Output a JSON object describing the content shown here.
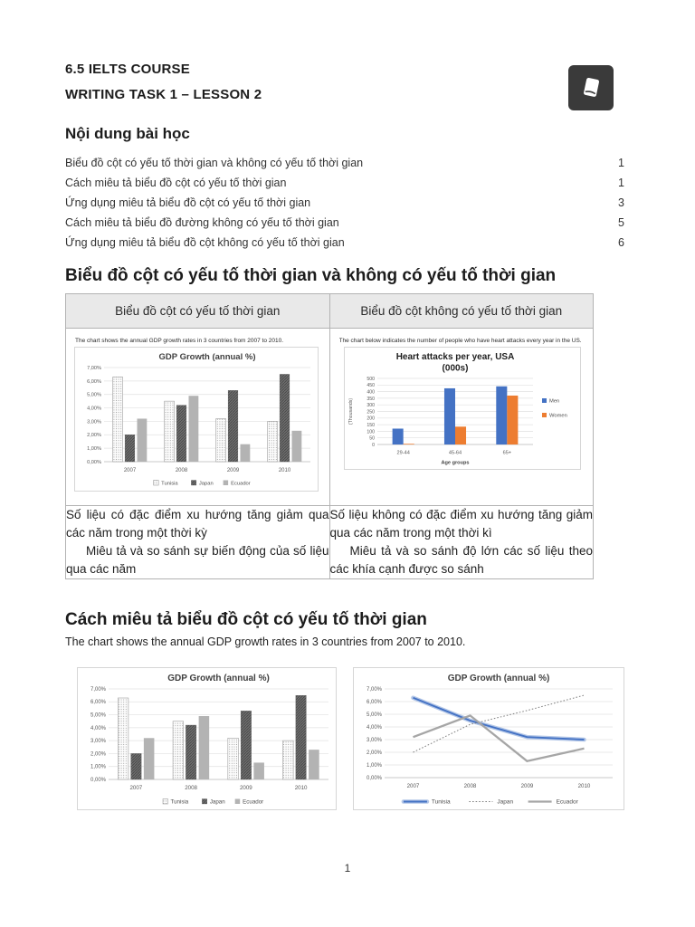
{
  "header": {
    "line1": "6.5 IELTS COURSE",
    "line2": "WRITING TASK 1 – LESSON 2",
    "icon": "book-icon"
  },
  "toc": {
    "title": "Nội dung bài học",
    "items": [
      {
        "label": "Biểu đồ cột có yếu tố thời gian và không có yếu tố thời gian",
        "page": "1"
      },
      {
        "label": "Cách miêu tả biểu đồ cột có yếu tố thời gian",
        "page": "1"
      },
      {
        "label": "Ứng dụng miêu tả biểu đồ cột có yếu tố thời gian",
        "page": "3"
      },
      {
        "label": "Cách miêu tả biểu đồ đường không có yếu tố thời gian",
        "page": "5"
      },
      {
        "label": "Ứng dụng miêu tả biểu đồ cột không có yếu tố thời gian",
        "page": "6"
      }
    ]
  },
  "section1": {
    "heading": "Biểu đồ cột có yếu tố thời gian và không có yếu tố thời gian",
    "table": {
      "headers": [
        "Biểu đồ cột có yếu tố thời gian",
        "Biểu đồ cột không có yếu tố thời gian"
      ],
      "left_caption": "The chart shows the annual GDP growth rates in 3 countries from 2007 to 2010.",
      "right_caption": "The chart  below indicates the number of people who have heart attacks every year in the US.",
      "left_text_p1": "Số liệu có đặc điểm xu hướng tăng giảm qua các năm trong một thời kỳ",
      "left_text_p2": "Miêu tả và so sánh sự biến động của số liệu qua các năm",
      "right_text_p1": "Số liệu không có đặc điểm xu hướng tăng giảm qua các năm trong một thời kì",
      "right_text_p2": "Miêu tả và so sánh độ lớn các số liệu theo các khía cạnh được so sánh"
    }
  },
  "section2": {
    "heading": "Cách miêu tả biểu đồ cột có yếu tố thời gian",
    "paragraph": "The chart shows the annual GDP growth rates in 3 countries from 2007 to 2010."
  },
  "page": {
    "number": "1"
  },
  "colors": {
    "men_blue": "#4472C4",
    "women_orange": "#ED7D31",
    "tunisia_line_blue": "#4472C4",
    "gray_line": "#A6A6A6"
  },
  "chart_data": [
    {
      "id": "gdp-bar-table",
      "type": "bar",
      "title": "GDP Growth (annual %)",
      "categories": [
        "2007",
        "2008",
        "2009",
        "2010"
      ],
      "series": [
        {
          "name": "Tunisia",
          "values": [
            6.3,
            4.5,
            3.2,
            3.0
          ],
          "style": "dotted-light"
        },
        {
          "name": "Japan",
          "values": [
            2.0,
            4.2,
            5.3,
            6.5
          ],
          "style": "dark-weave"
        },
        {
          "name": "Ecuador",
          "values": [
            3.2,
            4.9,
            1.3,
            2.3
          ],
          "style": "solid-gray"
        }
      ],
      "ylim": [
        0,
        7
      ],
      "ystep": 1,
      "yformat": "percent-comma",
      "xlabel": "",
      "ylabel": "",
      "legend": "bottom",
      "grid": true
    },
    {
      "id": "heart-bar",
      "type": "bar",
      "title": [
        "Heart attacks per year, USA",
        "(000s)"
      ],
      "categories": [
        "29-44",
        "45-64",
        "65+"
      ],
      "series": [
        {
          "name": "Men",
          "values": [
            120,
            425,
            440
          ],
          "color": "#4472C4"
        },
        {
          "name": "Women",
          "values": [
            5,
            135,
            370
          ],
          "color": "#ED7D31"
        }
      ],
      "ylim": [
        0,
        500
      ],
      "ystep": 50,
      "yformat": "integer",
      "xlabel": "Age groups",
      "ylabel": "(Thousands)",
      "legend": "right",
      "grid": true
    },
    {
      "id": "gdp-bar-large",
      "type": "bar",
      "title": "GDP Growth (annual %)",
      "categories": [
        "2007",
        "2008",
        "2009",
        "2010"
      ],
      "series": [
        {
          "name": "Tunisia",
          "values": [
            6.3,
            4.5,
            3.2,
            3.0
          ],
          "style": "dotted-light"
        },
        {
          "name": "Japan",
          "values": [
            2.0,
            4.2,
            5.3,
            6.5
          ],
          "style": "dark-weave"
        },
        {
          "name": "Ecuador",
          "values": [
            3.2,
            4.9,
            1.3,
            2.3
          ],
          "style": "solid-gray"
        }
      ],
      "ylim": [
        0,
        7
      ],
      "ystep": 1,
      "yformat": "percent-comma",
      "xlabel": "",
      "ylabel": "",
      "legend": "bottom",
      "grid": true
    },
    {
      "id": "gdp-line",
      "type": "line",
      "title": "GDP Growth (annual %)",
      "categories": [
        "2007",
        "2008",
        "2009",
        "2010"
      ],
      "series": [
        {
          "name": "Tunisia",
          "values": [
            6.3,
            4.5,
            3.2,
            3.0
          ],
          "color": "#4472C4",
          "line": "solid-cased"
        },
        {
          "name": "Japan",
          "values": [
            2.0,
            4.2,
            5.3,
            6.5
          ],
          "color": "#7F7F7F",
          "line": "dotted"
        },
        {
          "name": "Ecuador",
          "values": [
            3.2,
            4.9,
            1.3,
            2.3
          ],
          "color": "#A6A6A6",
          "line": "solid"
        }
      ],
      "ylim": [
        0,
        7
      ],
      "ystep": 1,
      "yformat": "percent-comma",
      "xlabel": "",
      "ylabel": "",
      "legend": "bottom",
      "grid": true
    }
  ]
}
